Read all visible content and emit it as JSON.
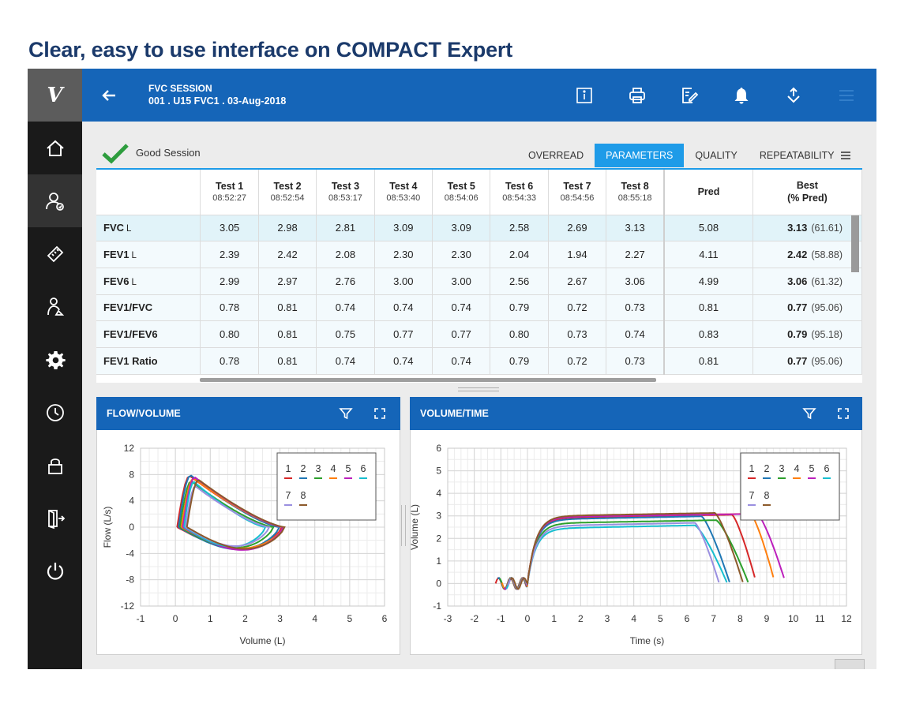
{
  "headline": "Clear, easy to use interface on COMPACT Expert",
  "nav": {
    "logo": "V",
    "items": [
      "home-icon",
      "patient-icon",
      "calibration-icon",
      "operator-icon",
      "settings-icon",
      "history-icon",
      "lock-icon",
      "exit-icon",
      "power-icon"
    ]
  },
  "header": {
    "title": "FVC SESSION",
    "subtitle": "001  .  U15 FVC1  .  03-Aug-2018",
    "icons": [
      "info-icon",
      "print-icon",
      "edit-report-icon",
      "bell-icon",
      "upload-icon",
      "menu-icon"
    ]
  },
  "status": {
    "label": "Good Session",
    "color": "#2e9d3e"
  },
  "tabs": [
    {
      "label": "OVERREAD",
      "active": false
    },
    {
      "label": "PARAMETERS",
      "active": true
    },
    {
      "label": "QUALITY",
      "active": false
    },
    {
      "label": "REPEATABILITY",
      "active": false
    }
  ],
  "table": {
    "columns": [
      {
        "name": "Test 1",
        "time": "08:52:27"
      },
      {
        "name": "Test 2",
        "time": "08:52:54"
      },
      {
        "name": "Test 3",
        "time": "08:53:17"
      },
      {
        "name": "Test 4",
        "time": "08:53:40"
      },
      {
        "name": "Test 5",
        "time": "08:54:06"
      },
      {
        "name": "Test 6",
        "time": "08:54:33"
      },
      {
        "name": "Test 7",
        "time": "08:54:56"
      },
      {
        "name": "Test 8",
        "time": "08:55:18"
      }
    ],
    "pred_header": "Pred",
    "best_header": "Best",
    "best_sub": "(% Pred)",
    "rows": [
      {
        "param": "FVC",
        "unit": "L",
        "values": [
          "3.05",
          "2.98",
          "2.81",
          "3.09",
          "3.09",
          "2.58",
          "2.69",
          "3.13"
        ],
        "pred": "5.08",
        "best": "3.13",
        "pct": "(61.61)"
      },
      {
        "param": "FEV1",
        "unit": "L",
        "values": [
          "2.39",
          "2.42",
          "2.08",
          "2.30",
          "2.30",
          "2.04",
          "1.94",
          "2.27"
        ],
        "pred": "4.11",
        "best": "2.42",
        "pct": "(58.88)"
      },
      {
        "param": "FEV6",
        "unit": "L",
        "values": [
          "2.99",
          "2.97",
          "2.76",
          "3.00",
          "3.00",
          "2.56",
          "2.67",
          "3.06"
        ],
        "pred": "4.99",
        "best": "3.06",
        "pct": "(61.32)"
      },
      {
        "param": "FEV1/FVC",
        "unit": "",
        "values": [
          "0.78",
          "0.81",
          "0.74",
          "0.74",
          "0.74",
          "0.79",
          "0.72",
          "0.73"
        ],
        "pred": "0.81",
        "best": "0.77",
        "pct": "(95.06)"
      },
      {
        "param": "FEV1/FEV6",
        "unit": "",
        "values": [
          "0.80",
          "0.81",
          "0.75",
          "0.77",
          "0.77",
          "0.80",
          "0.73",
          "0.74"
        ],
        "pred": "0.83",
        "best": "0.79",
        "pct": "(95.18)"
      },
      {
        "param": "FEV1 Ratio",
        "unit": "",
        "values": [
          "0.78",
          "0.81",
          "0.74",
          "0.74",
          "0.74",
          "0.79",
          "0.72",
          "0.73"
        ],
        "pred": "0.81",
        "best": "0.77",
        "pct": "(95.06)"
      }
    ]
  },
  "series_colors": [
    "#d62728",
    "#1f77b4",
    "#2ca02c",
    "#ff7f0e",
    "#bc1fbc",
    "#17becf",
    "#9a8fe0",
    "#8c5a2b"
  ],
  "legend_labels": [
    "1",
    "2",
    "3",
    "4",
    "5",
    "6",
    "7",
    "8"
  ],
  "flow_volume": {
    "title": "FLOW/VOLUME",
    "chart_data": {
      "type": "line",
      "xlabel": "Volume (L)",
      "ylabel": "Flow (L/s)",
      "xlim": [
        -1,
        6
      ],
      "ylim": [
        -12,
        12
      ],
      "xticks": [
        -1,
        0,
        1,
        2,
        3,
        4,
        5,
        6
      ],
      "yticks": [
        12,
        8,
        4,
        0,
        -4,
        -8,
        -12
      ],
      "series": [
        {
          "name": "1",
          "fvc": 3.05,
          "pef": 7.8,
          "pif": 3.9
        },
        {
          "name": "2",
          "fvc": 2.98,
          "pef": 7.9,
          "pif": 4.0
        },
        {
          "name": "3",
          "fvc": 2.81,
          "pef": 7.0,
          "pif": 3.7
        },
        {
          "name": "4",
          "fvc": 3.09,
          "pef": 7.4,
          "pif": 3.8
        },
        {
          "name": "5",
          "fvc": 3.09,
          "pef": 7.6,
          "pif": 4.1
        },
        {
          "name": "6",
          "fvc": 2.58,
          "pef": 6.9,
          "pif": 3.5
        },
        {
          "name": "7",
          "fvc": 2.69,
          "pef": 6.2,
          "pif": 3.4
        },
        {
          "name": "8",
          "fvc": 3.13,
          "pef": 7.2,
          "pif": 3.9
        }
      ],
      "legend": "top-right",
      "grid": true
    }
  },
  "volume_time": {
    "title": "VOLUME/TIME",
    "chart_data": {
      "type": "line",
      "xlabel": "Time (s)",
      "ylabel": "Volume (L)",
      "xlim": [
        -3,
        12
      ],
      "ylim": [
        -1,
        6
      ],
      "xticks": [
        -3,
        -2,
        -1,
        0,
        1,
        2,
        3,
        4,
        5,
        6,
        7,
        8,
        9,
        10,
        11,
        12
      ],
      "yticks": [
        6,
        5,
        4,
        3,
        2,
        1,
        0,
        -1
      ],
      "series": [
        {
          "name": "1",
          "fvc": 3.05,
          "end_time": 8.6
        },
        {
          "name": "2",
          "fvc": 2.98,
          "end_time": 7.6
        },
        {
          "name": "3",
          "fvc": 2.81,
          "end_time": 8.3
        },
        {
          "name": "4",
          "fvc": 3.09,
          "end_time": 9.3
        },
        {
          "name": "5",
          "fvc": 3.09,
          "end_time": 9.7
        },
        {
          "name": "6",
          "fvc": 2.58,
          "end_time": 7.5
        },
        {
          "name": "7",
          "fvc": 2.69,
          "end_time": 7.2
        },
        {
          "name": "8",
          "fvc": 3.13,
          "end_time": 8.1
        }
      ],
      "legend": "top-right",
      "grid": true
    }
  }
}
